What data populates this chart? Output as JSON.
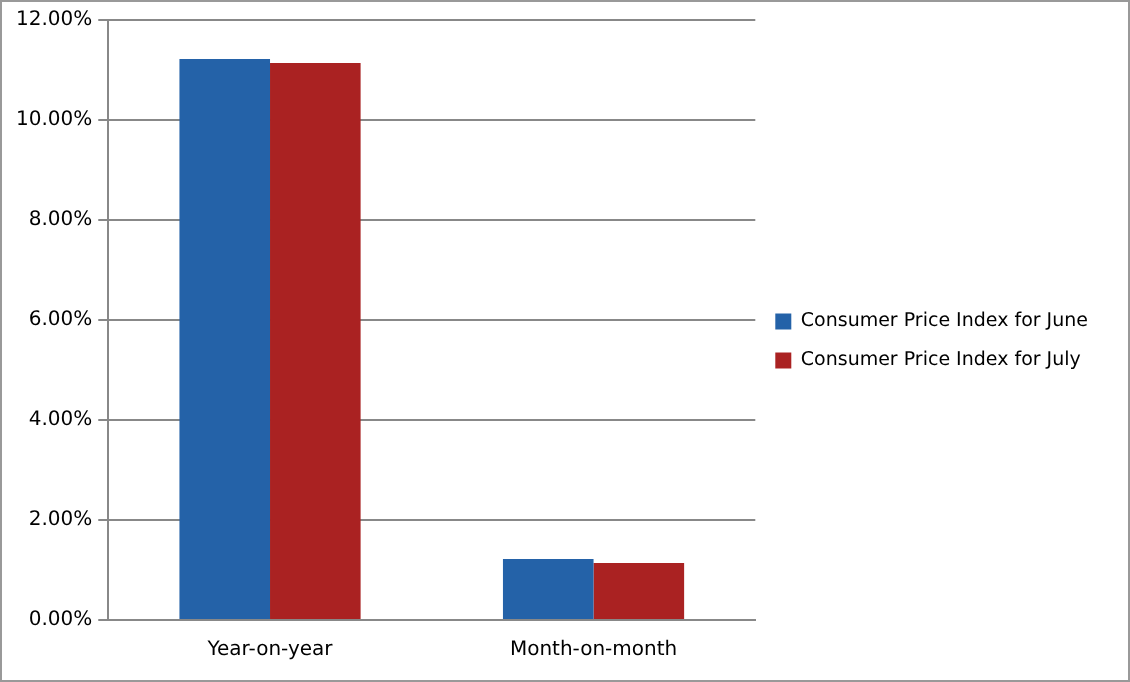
{
  "chart_data": {
    "type": "bar",
    "categories": [
      "Year-on-year",
      "Month-on-month"
    ],
    "series": [
      {
        "name": "Consumer Price Index for June",
        "color": "#2462a8",
        "values": [
          11.22,
          1.22
        ]
      },
      {
        "name": "Consumer Price Index for July",
        "color": "#aa2222",
        "values": [
          11.14,
          1.14
        ]
      }
    ],
    "ylim": [
      0,
      12
    ],
    "yticks": [
      {
        "value": 0,
        "label": "0.00%"
      },
      {
        "value": 2,
        "label": "2.00%"
      },
      {
        "value": 4,
        "label": "4.00%"
      },
      {
        "value": 6,
        "label": "6.00%"
      },
      {
        "value": 8,
        "label": "8.00%"
      },
      {
        "value": 10,
        "label": "10.00%"
      },
      {
        "value": 12,
        "label": "12.00%"
      }
    ],
    "grid": "y",
    "legend": "right"
  }
}
